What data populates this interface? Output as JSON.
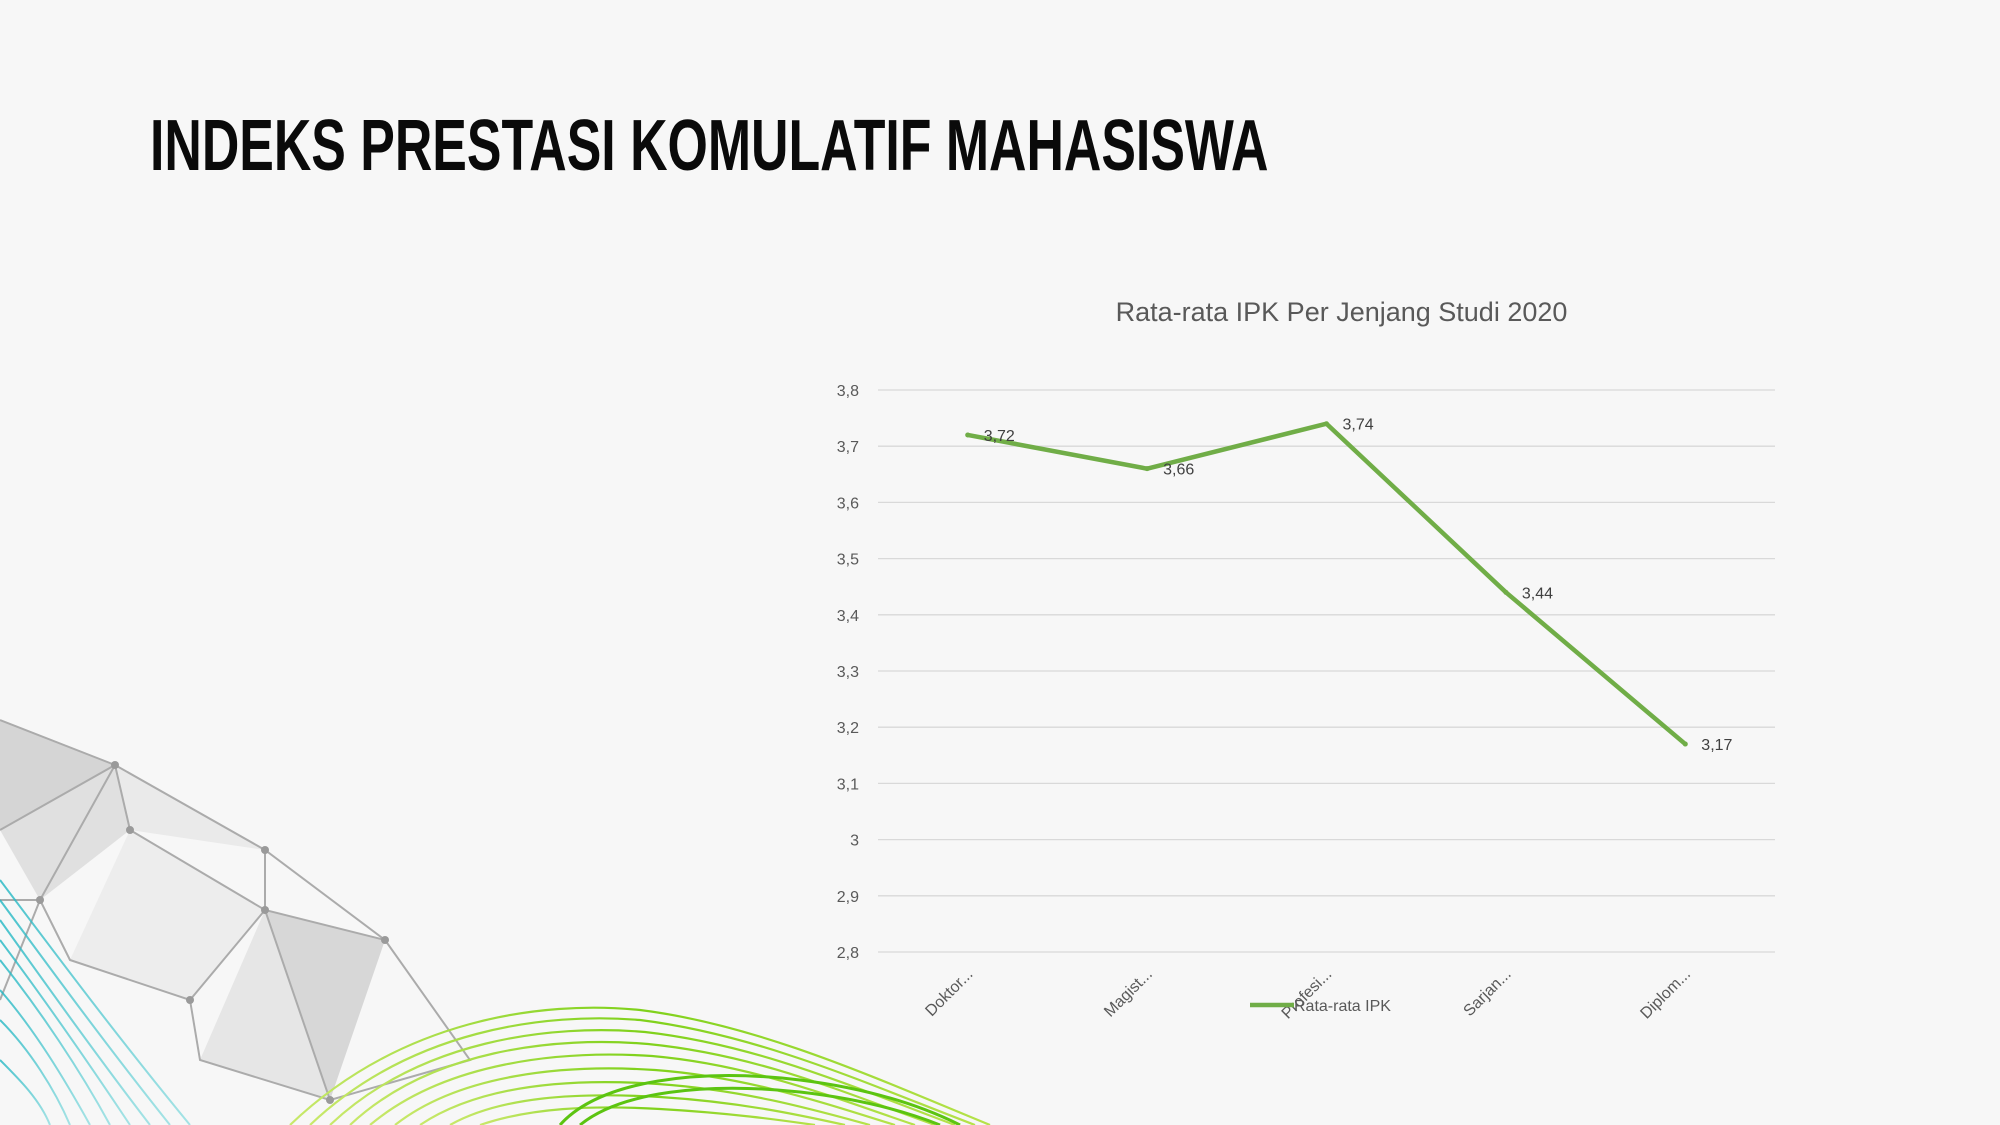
{
  "slide": {
    "title": "INDEKS PRESTASI KOMULATIF MAHASISWA"
  },
  "colors": {
    "background": "#f7f7f7",
    "series_line": "#70ad47",
    "gridline": "#d9d9d9",
    "axis_text": "#595959",
    "title_text": "#595959",
    "label_text": "#404040"
  },
  "chart_data": {
    "type": "line",
    "title": "Rata-rata IPK Per Jenjang Studi 2020",
    "categories": [
      "Doktor...",
      "Magist...",
      "Profesi...",
      "Sarjan...",
      "Diplom..."
    ],
    "series": [
      {
        "name": "Rata-rata IPK",
        "values": [
          3.72,
          3.66,
          3.74,
          3.44,
          3.17
        ],
        "data_labels": [
          "3,72",
          "3,66",
          "3,74",
          "3,44",
          "3,17"
        ]
      }
    ],
    "ylim": [
      2.8,
      3.8
    ],
    "yticks": [
      "2,8",
      "2,9",
      "3",
      "3,1",
      "3,2",
      "3,3",
      "3,4",
      "3,5",
      "3,6",
      "3,7",
      "3,8"
    ],
    "xlabel": "",
    "ylabel": "",
    "grid": true,
    "legend": "bottom"
  }
}
